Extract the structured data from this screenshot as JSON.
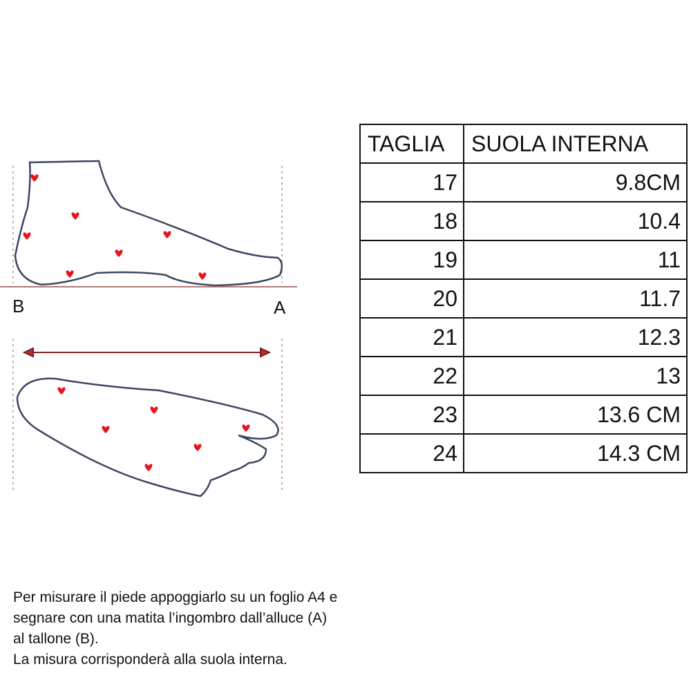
{
  "diagram": {
    "label_heel": "B",
    "label_toe": "A",
    "outline_color": "#3a4560",
    "heart_color": "#e8141c",
    "guide_color": "#c98080"
  },
  "table": {
    "headers": [
      "TAGLIA",
      "SUOLA INTERNA"
    ],
    "rows": [
      {
        "size": "17",
        "insole": "9.8CM"
      },
      {
        "size": "18",
        "insole": "10.4"
      },
      {
        "size": "19",
        "insole": "11"
      },
      {
        "size": "20",
        "insole": "11.7"
      },
      {
        "size": "21",
        "insole": "12.3"
      },
      {
        "size": "22",
        "insole": "13"
      },
      {
        "size": "23",
        "insole": "13.6 CM"
      },
      {
        "size": "24",
        "insole": "14.3 CM"
      }
    ]
  },
  "note": {
    "lines": [
      "Per misurare il piede appoggiarlo su un foglio A4 e",
      "segnare con una matita l’ingombro dall’alluce (A)",
      "al tallone (B).",
      "La misura corrisponderà alla suola interna."
    ]
  }
}
